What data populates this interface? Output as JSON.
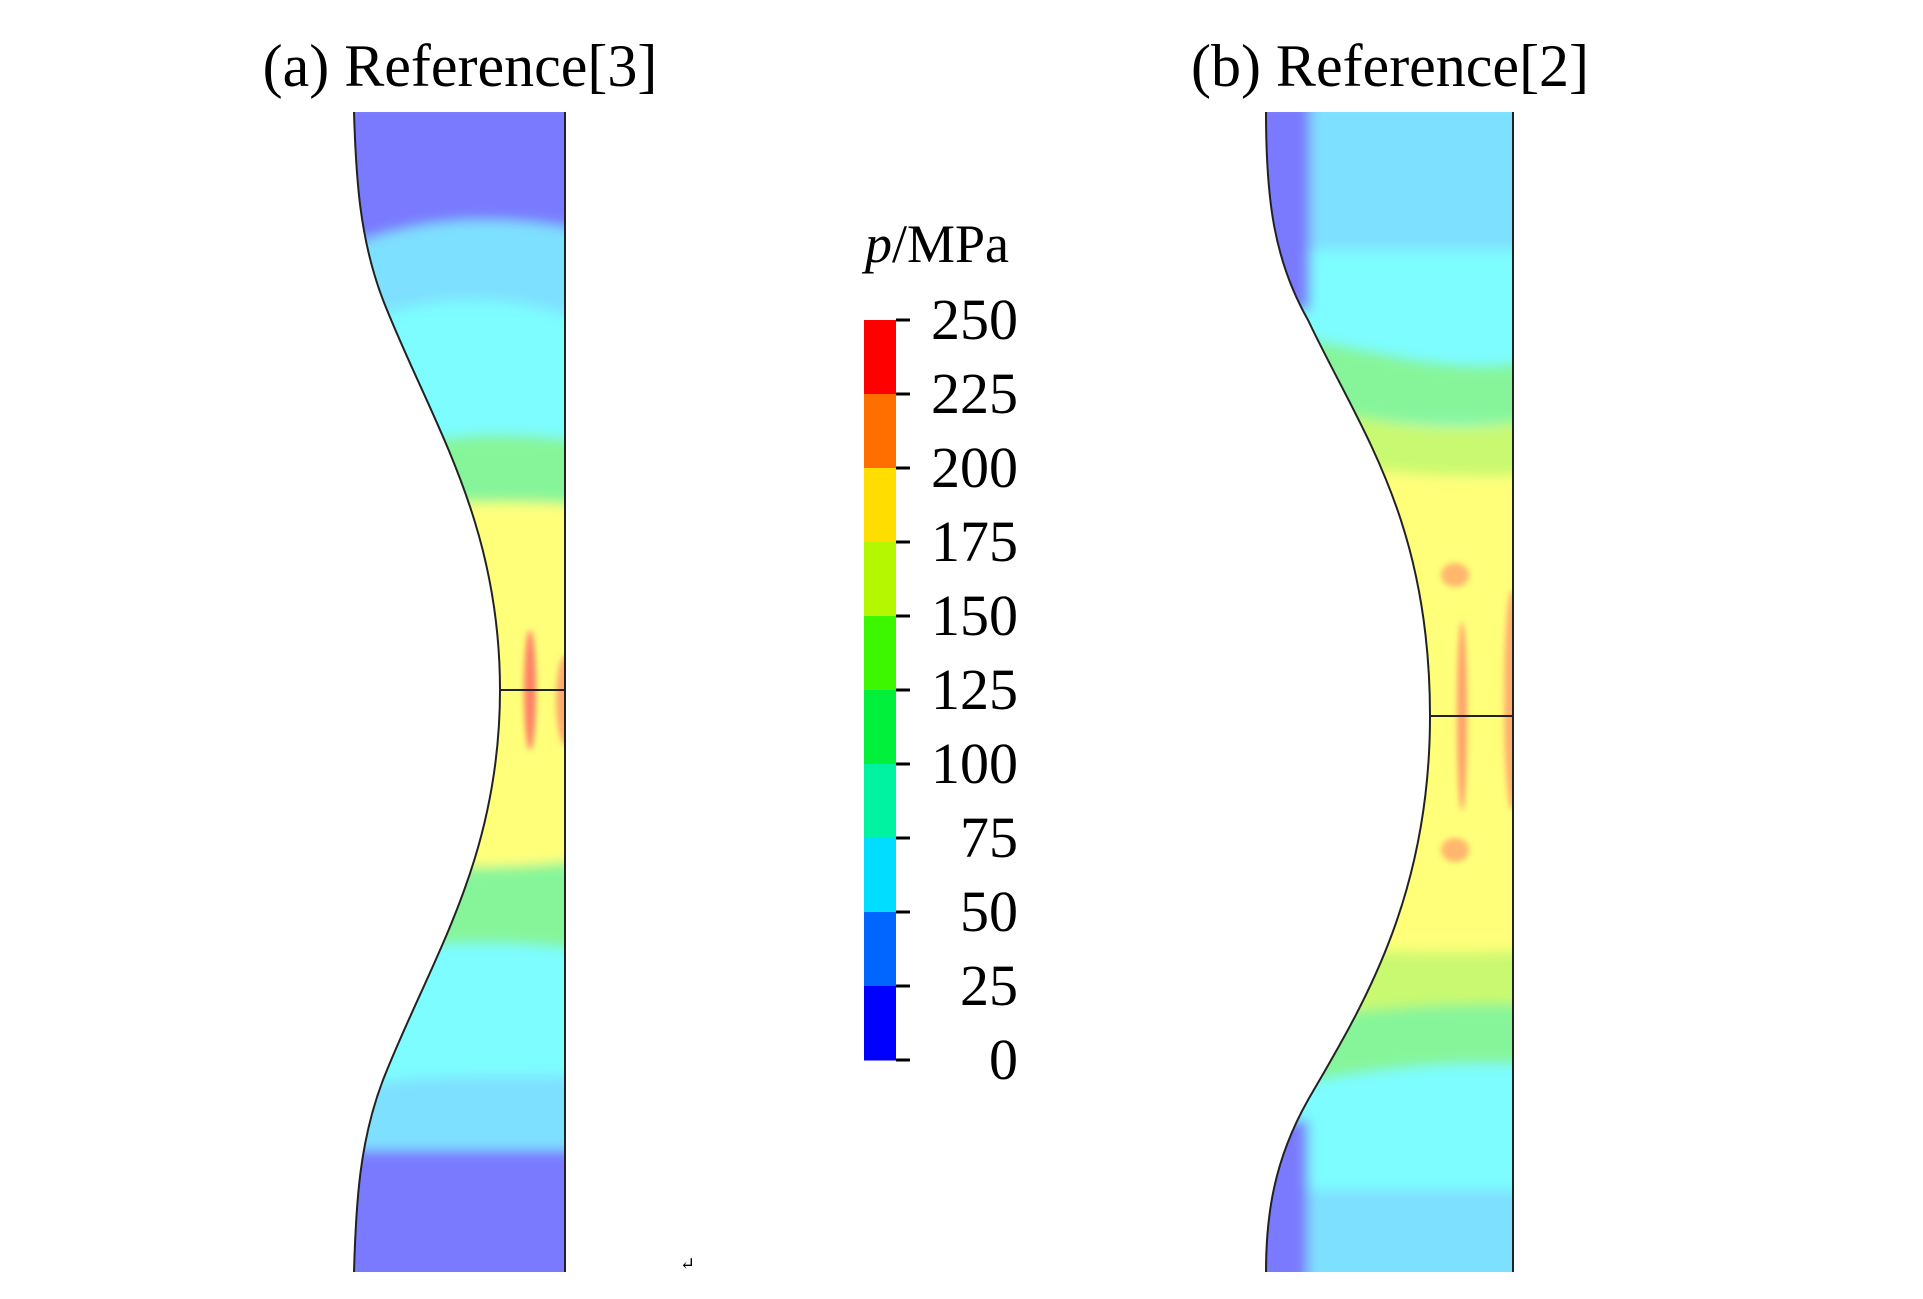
{
  "panels": [
    {
      "id": "a",
      "title": "(a) Reference[3]"
    },
    {
      "id": "b",
      "title": "(b) Reference[2]"
    }
  ],
  "colorbar": {
    "title_symbol": "p",
    "title_unit": "/MPa",
    "ticks": [
      "250",
      "225",
      "200",
      "175",
      "150",
      "125",
      "100",
      "75",
      "50",
      "25",
      "0"
    ],
    "bands_top_to_bottom": [
      "#ff0000",
      "#ff6f00",
      "#ffdd00",
      "#b4f700",
      "#3cf700",
      "#00f03c",
      "#00f3a0",
      "#00ddff",
      "#0066ff",
      "#0000ff"
    ]
  },
  "contour_colors": {
    "blue_violet": "#7a7aff",
    "sky": "#7ee0ff",
    "cyan": "#7dfdff",
    "green": "#86f59a",
    "yellowgreen": "#c9f970",
    "yellow": "#ffff7a",
    "hot": "#ff6060"
  },
  "misc": {
    "return_mark": "↵"
  }
}
